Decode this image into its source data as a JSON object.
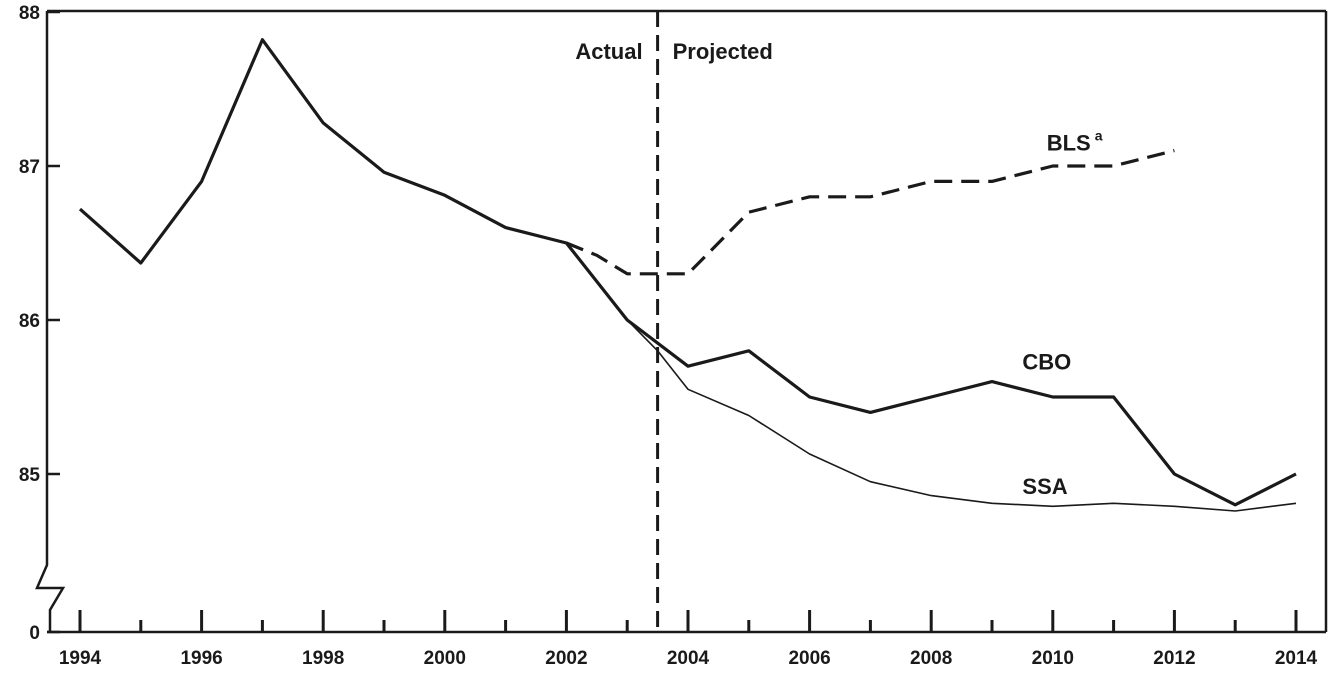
{
  "chart_data": {
    "type": "line",
    "title": "",
    "xlabel": "",
    "ylabel": "",
    "xlim": [
      1993.5,
      2014.4
    ],
    "ylim": [
      85,
      88
    ],
    "y_axis_broken": true,
    "y_tick_labels": [
      "0",
      "85",
      "86",
      "87",
      "88"
    ],
    "x_tick_labels": [
      "1994",
      "1996",
      "1998",
      "2000",
      "2002",
      "2004",
      "2006",
      "2008",
      "2010",
      "2012",
      "2014"
    ],
    "grid": false,
    "divider": {
      "x": 2003.5,
      "left_label": "Actual",
      "right_label": "Projected"
    },
    "series": [
      {
        "name": "CBO",
        "style": "thick-solid",
        "color": "#1a1a1a",
        "x": [
          1994,
          1995,
          1996,
          1997,
          1998,
          1999,
          2000,
          2001,
          2002,
          2003,
          2004,
          2005,
          2006,
          2007,
          2008,
          2009,
          2010,
          2011,
          2012,
          2013,
          2014
        ],
        "values": [
          86.72,
          86.37,
          86.9,
          87.82,
          87.28,
          86.96,
          86.81,
          86.6,
          86.5,
          86.0,
          85.7,
          85.8,
          85.5,
          85.4,
          85.5,
          85.6,
          85.5,
          85.5,
          85.0,
          84.8,
          85.0
        ]
      },
      {
        "name": "SSA",
        "style": "thin-solid",
        "color": "#1a1a1a",
        "x": [
          2003,
          2003.5,
          2004,
          2005,
          2006,
          2007,
          2008,
          2009,
          2010,
          2011,
          2012,
          2013,
          2014
        ],
        "values": [
          86.0,
          85.8,
          85.55,
          85.38,
          85.13,
          84.95,
          84.86,
          84.81,
          84.79,
          84.81,
          84.79,
          84.76,
          84.81
        ]
      },
      {
        "name": "BLS",
        "name_superscript": "a",
        "style": "dashed",
        "color": "#1a1a1a",
        "x": [
          2002,
          2002.5,
          2003,
          2003.5,
          2004,
          2005,
          2006,
          2007,
          2008,
          2009,
          2010,
          2011,
          2012
        ],
        "values": [
          86.5,
          86.42,
          86.3,
          86.3,
          86.3,
          86.7,
          86.8,
          86.8,
          86.9,
          86.9,
          87.0,
          87.0,
          87.1
        ]
      }
    ],
    "series_labels": [
      {
        "series": "BLS",
        "x": 2009.9,
        "y": 87.1
      },
      {
        "series": "CBO",
        "x": 2009.5,
        "y": 85.68
      },
      {
        "series": "SSA",
        "x": 2009.5,
        "y": 84.87
      }
    ]
  }
}
